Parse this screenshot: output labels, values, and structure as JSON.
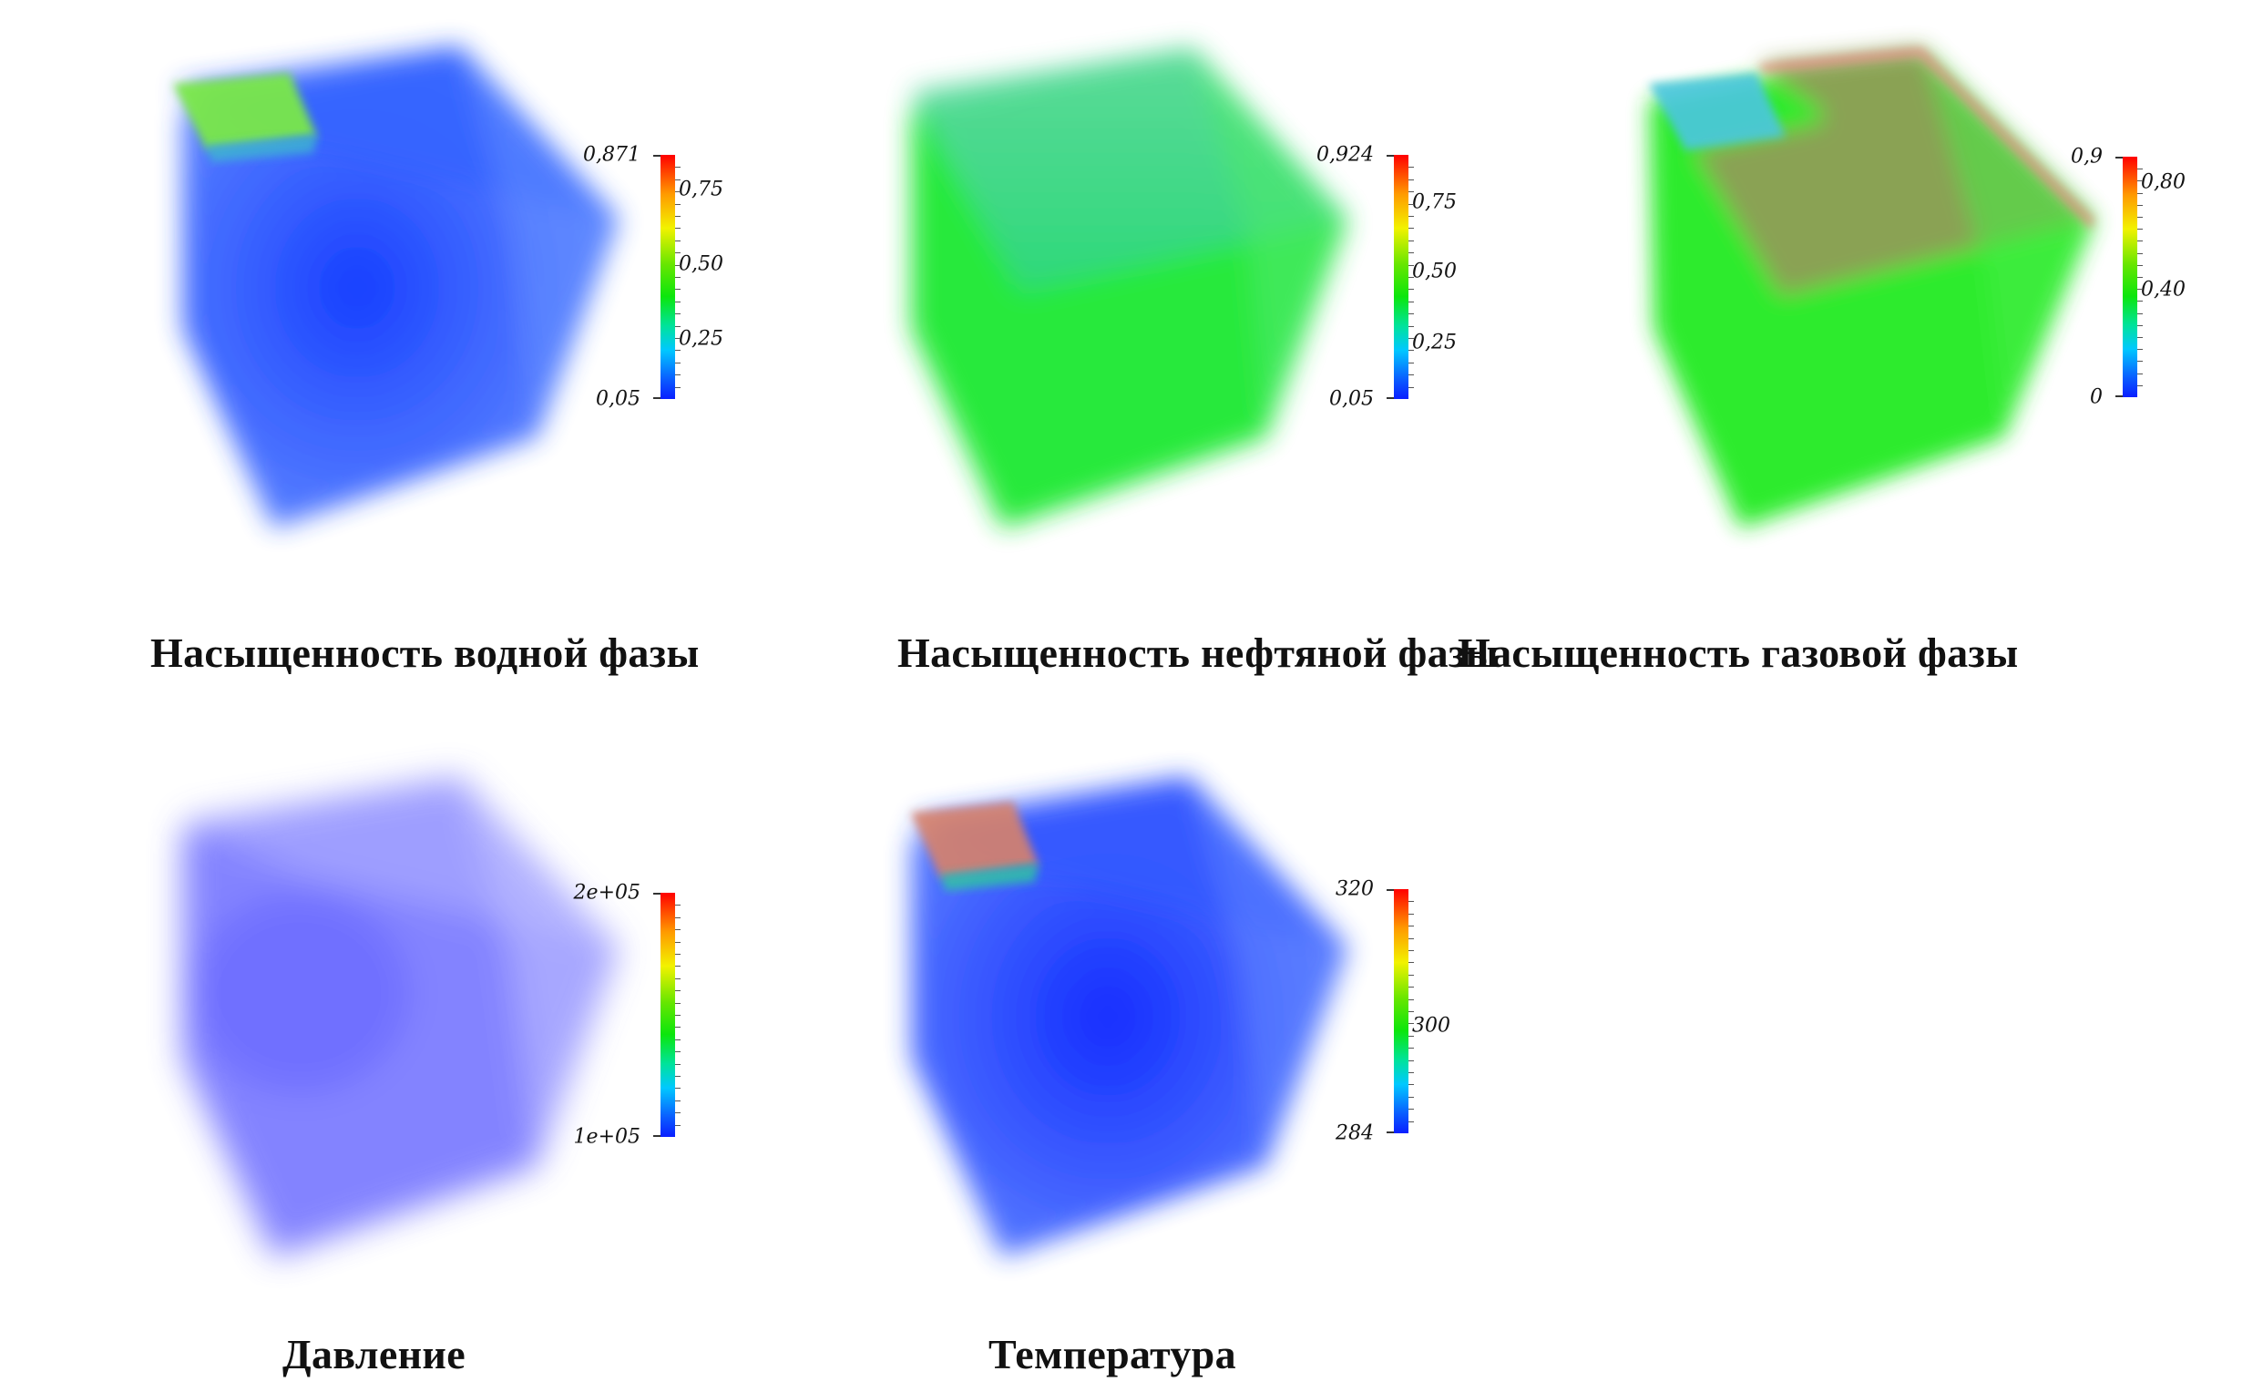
{
  "panels": [
    {
      "id": "water",
      "title": "Насыщенность водной фазы",
      "colorbar": {
        "max_label": "0,871",
        "min_label": "0,05",
        "inner_labels": [
          "0,75",
          "0,50",
          "0,25"
        ]
      }
    },
    {
      "id": "oil",
      "title": "Насыщенность нефтяной фазы",
      "colorbar": {
        "max_label": "0,924",
        "min_label": "0,05",
        "inner_labels": [
          "0,75",
          "0,50",
          "0,25"
        ]
      }
    },
    {
      "id": "gas",
      "title": "Насыщенность газовой фазы",
      "colorbar": {
        "max_label": "0,9",
        "min_label": "0",
        "inner_labels": [
          "0,80",
          "0,40"
        ]
      }
    },
    {
      "id": "pressure",
      "title": "Давление",
      "colorbar": {
        "max_label": "2e+05",
        "min_label": "1e+05",
        "inner_labels": []
      }
    },
    {
      "id": "temperature",
      "title": "Температура",
      "colorbar": {
        "max_label": "320",
        "min_label": "284",
        "inner_labels": [
          "300"
        ]
      }
    }
  ],
  "colors": {
    "water_body": "#1a4dff",
    "oil_body": "#19e62c",
    "gas_body": "#1ee81e",
    "gas_top": "#8a9a4e",
    "pressure_body": "#6a6aff",
    "temperature_body": "#1530ff",
    "corner_water": "#7ae84a",
    "corner_temperature": "#e0705a"
  }
}
